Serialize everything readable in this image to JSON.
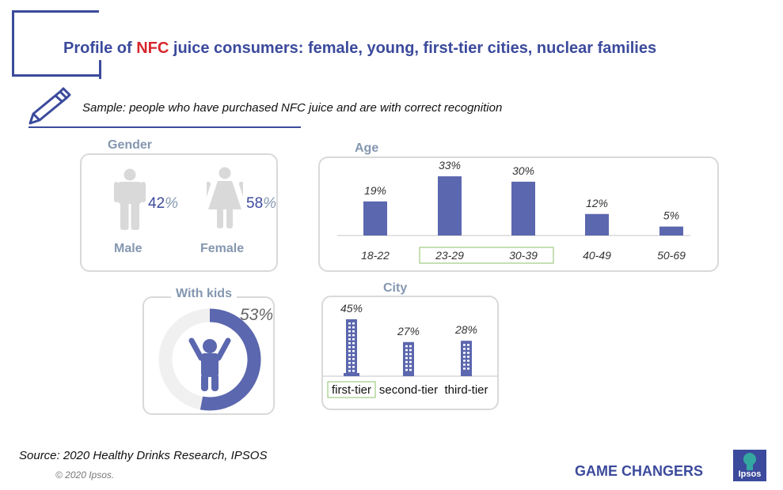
{
  "title": {
    "prefix": "Profile of ",
    "highlight": "NFC",
    "suffix": " juice consumers: female, young, first-tier cities, nuclear families"
  },
  "sample": "Sample: people who have purchased NFC juice and are with correct recognition",
  "gender": {
    "title": "Gender",
    "male": {
      "label": "Male",
      "value": "42",
      "unit": "%"
    },
    "female": {
      "label": "Female",
      "value": "58",
      "unit": "%"
    }
  },
  "kids": {
    "title": "With kids",
    "value_label": "53%"
  },
  "source": "Source: 2020 Healthy Drinks Research, IPSOS",
  "copyright": "© 2020 Ipsos.",
  "footer": {
    "tagline": "GAME CHANGERS",
    "logo_text": "Ipsos"
  },
  "colors": {
    "accent": "#3b4a9c",
    "highlight": "#d7262c",
    "bar": "#5b67ae",
    "label_gray": "#8497b0",
    "ring_bg": "#f0f0f0",
    "highlight_box": "#8ec26a"
  },
  "chart_data": [
    {
      "type": "bar",
      "title": "Age",
      "categories": [
        "18-22",
        "23-29",
        "30-39",
        "40-49",
        "50-69"
      ],
      "values": [
        19,
        33,
        30,
        12,
        5
      ],
      "value_labels": [
        "19%",
        "33%",
        "30%",
        "12%",
        "5%"
      ],
      "highlighted_categories": [
        "23-29",
        "30-39"
      ]
    },
    {
      "type": "bar",
      "title": "City",
      "categories": [
        "first-tier",
        "second-tier",
        "third-tier"
      ],
      "values": [
        45,
        27,
        28
      ],
      "value_labels": [
        "45%",
        "27%",
        "28%"
      ],
      "highlighted_categories": [
        "first-tier"
      ]
    },
    {
      "type": "pie",
      "title": "With kids",
      "values": [
        53
      ],
      "value_labels": [
        "53%"
      ]
    }
  ]
}
